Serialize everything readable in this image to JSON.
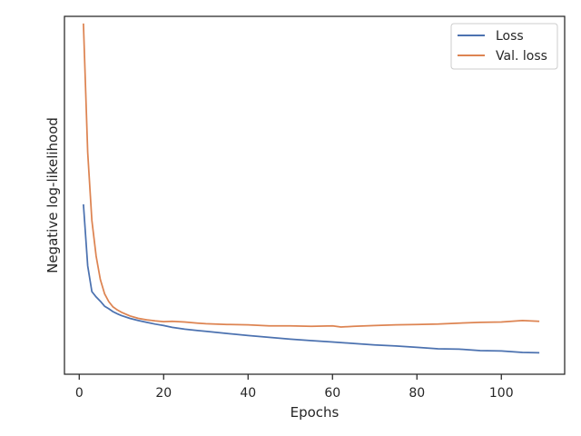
{
  "chart_data": {
    "type": "line",
    "title": "",
    "xlabel": "Epochs",
    "ylabel": "Negative log-likelihood",
    "xlim": [
      -3.5,
      115
    ],
    "ylim": [
      0,
      100
    ],
    "xticks": [
      0,
      20,
      40,
      60,
      80,
      100
    ],
    "yticks_visible": false,
    "grid": false,
    "legend": "top-right",
    "series": [
      {
        "name": "Loss",
        "color": "#4c72b0",
        "x": [
          1,
          2,
          3,
          4,
          5,
          6,
          7,
          8,
          9,
          10,
          12,
          14,
          16,
          18,
          20,
          22,
          25,
          28,
          30,
          35,
          40,
          45,
          50,
          55,
          60,
          65,
          70,
          75,
          80,
          85,
          90,
          95,
          100,
          105,
          109
        ],
        "y": [
          47.5,
          30.3,
          23.1,
          21.6,
          20.4,
          19.0,
          18.3,
          17.5,
          16.9,
          16.4,
          15.6,
          15.0,
          14.5,
          14.0,
          13.6,
          13.1,
          12.6,
          12.2,
          12.0,
          11.4,
          10.8,
          10.3,
          9.8,
          9.4,
          9.0,
          8.6,
          8.2,
          7.9,
          7.5,
          7.1,
          7.0,
          6.6,
          6.5,
          6.1,
          6.0
        ]
      },
      {
        "name": "Val. loss",
        "color": "#dd8452",
        "x": [
          1,
          2,
          3,
          4,
          5,
          6,
          7,
          8,
          9,
          10,
          12,
          14,
          16,
          18,
          20,
          22,
          25,
          28,
          30,
          35,
          40,
          45,
          50,
          55,
          60,
          62,
          65,
          70,
          75,
          80,
          85,
          90,
          95,
          100,
          105,
          109
        ],
        "y": [
          98.0,
          62.0,
          43.0,
          33.0,
          26.5,
          22.5,
          20.3,
          18.8,
          18.0,
          17.3,
          16.3,
          15.6,
          15.2,
          14.9,
          14.7,
          14.8,
          14.6,
          14.3,
          14.1,
          13.9,
          13.8,
          13.5,
          13.5,
          13.4,
          13.5,
          13.2,
          13.4,
          13.6,
          13.8,
          13.9,
          14.0,
          14.3,
          14.5,
          14.6,
          15.0,
          14.8
        ]
      }
    ]
  }
}
